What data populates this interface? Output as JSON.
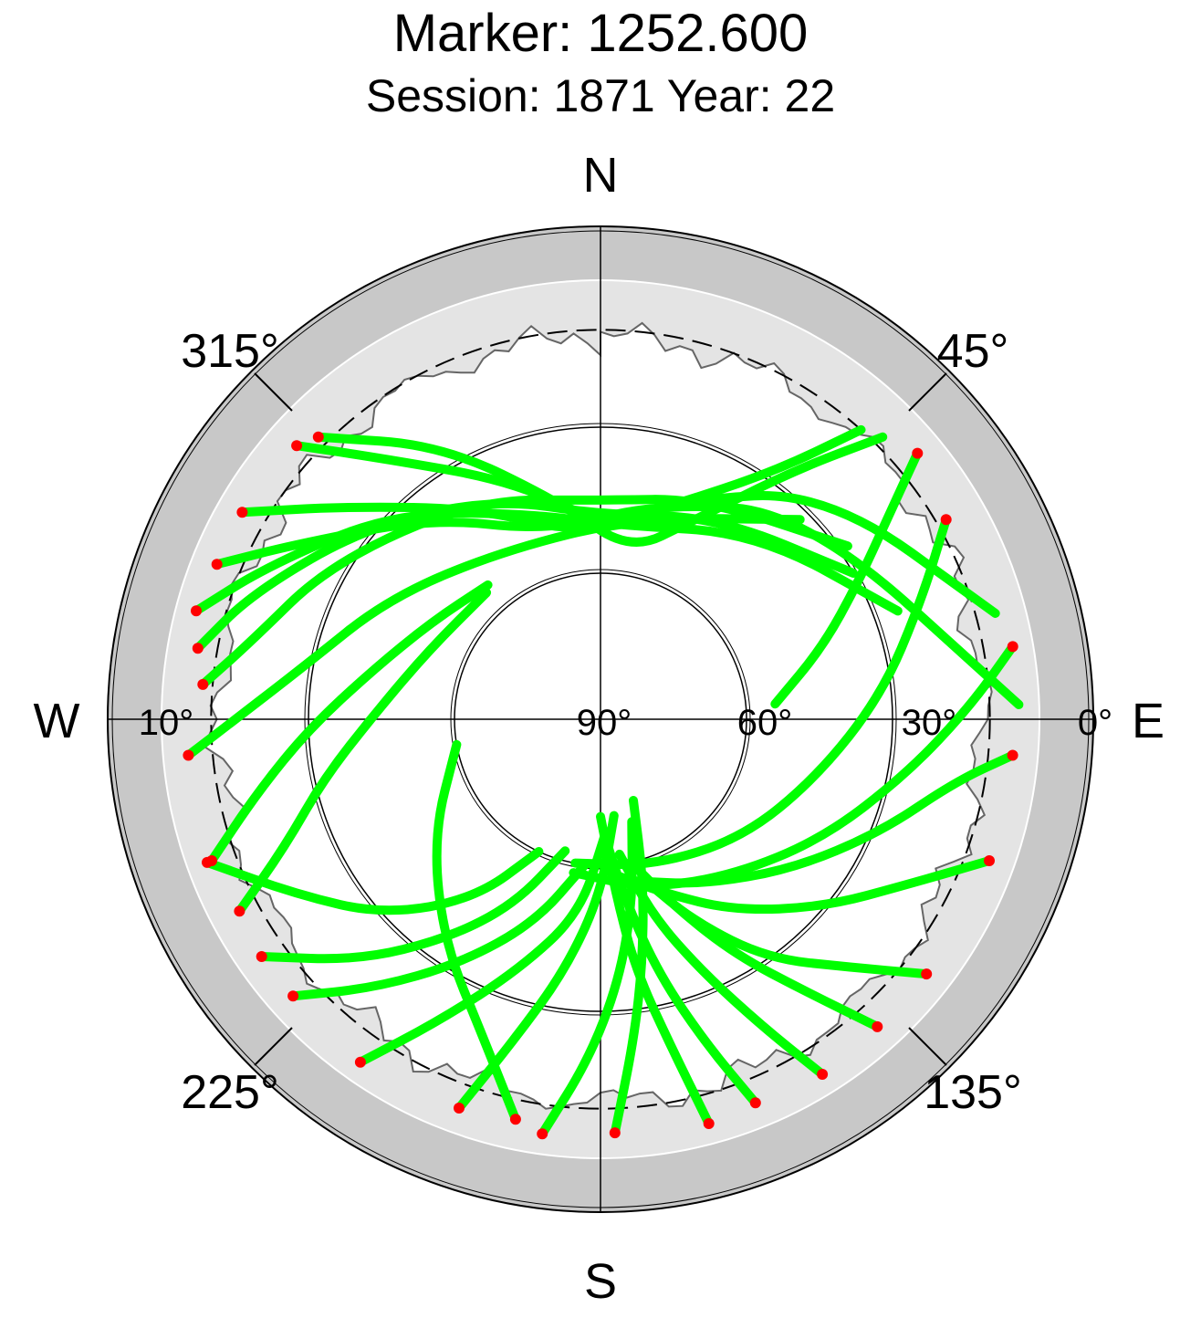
{
  "chart_data": {
    "type": "scatter",
    "projection": "polar-skyplot",
    "title": "Marker: 1252.600",
    "subtitle": "Session: 1871 Year: 22",
    "compass": {
      "north": "N",
      "south": "S",
      "west": "W",
      "east": "E"
    },
    "azimuth_labels": [
      "315°",
      "45°",
      "225°",
      "135°"
    ],
    "elevation_labels": [
      "10°",
      "90°",
      "60°",
      "30°",
      "0°"
    ],
    "elevation_rings": [
      0,
      10,
      30,
      60
    ],
    "colors": {
      "track": "#00ff00",
      "track_endpoint": "#ff0000",
      "outer_band": "#c8c8c8",
      "elevation_mask": "#e4e4e4",
      "grid": "#000000"
    },
    "mask_elevation_deg": 10,
    "tracks": [
      {
        "az": [
          315,
          330,
          350,
          10,
          25,
          38,
          45
        ],
        "el": [
          8,
          25,
          45,
          55,
          45,
          25,
          8
        ]
      },
      {
        "az": [
          312,
          320,
          340,
          0,
          18,
          35,
          42
        ],
        "el": [
          6,
          20,
          38,
          50,
          44,
          28,
          10
        ]
      },
      {
        "az": [
          300,
          310,
          330,
          355,
          20,
          45,
          75
        ],
        "el": [
          5,
          22,
          40,
          52,
          42,
          24,
          6
        ]
      },
      {
        "az": [
          292,
          300,
          320,
          345,
          15,
          45,
          88
        ],
        "el": [
          5,
          18,
          36,
          50,
          44,
          30,
          4
        ]
      },
      {
        "az": [
          285,
          295,
          315,
          340,
          5,
          40,
          70
        ],
        "el": [
          4,
          15,
          30,
          45,
          50,
          40,
          25
        ]
      },
      {
        "az": [
          280,
          290,
          310,
          335,
          0,
          30,
          60
        ],
        "el": [
          6,
          14,
          28,
          40,
          48,
          42,
          30
        ]
      },
      {
        "az": [
          275,
          282,
          300,
          330,
          0,
          25,
          55
        ],
        "el": [
          8,
          16,
          26,
          38,
          45,
          40,
          28
        ]
      },
      {
        "az": [
          265,
          270,
          280,
          300,
          330,
          10,
          45
        ],
        "el": [
          5,
          15,
          28,
          40,
          50,
          48,
          32
        ]
      },
      {
        "az": [
          250,
          240,
          228,
          215,
          205
        ],
        "el": [
          4,
          18,
          30,
          45,
          60
        ]
      },
      {
        "az": [
          235,
          225,
          215,
          205,
          195
        ],
        "el": [
          5,
          20,
          35,
          48,
          62
        ]
      },
      {
        "az": [
          228,
          220,
          210,
          198,
          186
        ],
        "el": [
          5,
          18,
          32,
          46,
          60
        ]
      },
      {
        "az": [
          215,
          208,
          198,
          186,
          178
        ],
        "el": [
          4,
          20,
          36,
          50,
          66
        ]
      },
      {
        "az": [
          200,
          195,
          188,
          180,
          172
        ],
        "el": [
          5,
          22,
          38,
          54,
          70
        ]
      },
      {
        "az": [
          188,
          182,
          176,
          170,
          163
        ],
        "el": [
          4,
          20,
          36,
          52,
          68
        ]
      },
      {
        "az": [
          178,
          174,
          170,
          165,
          158
        ],
        "el": [
          5,
          24,
          40,
          56,
          72
        ]
      },
      {
        "az": [
          165,
          168,
          172,
          175,
          180
        ],
        "el": [
          4,
          22,
          38,
          54,
          70
        ]
      },
      {
        "az": [
          158,
          162,
          167,
          172,
          178
        ],
        "el": [
          5,
          20,
          36,
          52,
          66
        ]
      },
      {
        "az": [
          148,
          152,
          158,
          165,
          172
        ],
        "el": [
          4,
          18,
          34,
          48,
          62
        ]
      },
      {
        "az": [
          138,
          143,
          150,
          158,
          168
        ],
        "el": [
          5,
          20,
          34,
          48,
          60
        ]
      },
      {
        "az": [
          128,
          135,
          145,
          155,
          165
        ],
        "el": [
          5,
          18,
          30,
          44,
          56
        ]
      },
      {
        "az": [
          110,
          118,
          130,
          145,
          160,
          175
        ],
        "el": [
          5,
          18,
          30,
          42,
          52,
          58
        ]
      },
      {
        "az": [
          95,
          100,
          112,
          128,
          148,
          168
        ],
        "el": [
          5,
          16,
          28,
          40,
          50,
          56
        ]
      },
      {
        "az": [
          80,
          88,
          100,
          118,
          140,
          165,
          190
        ],
        "el": [
          4,
          14,
          26,
          38,
          48,
          54,
          58
        ]
      },
      {
        "az": [
          60,
          70,
          85,
          105,
          130,
          160,
          190
        ],
        "el": [
          8,
          20,
          32,
          44,
          52,
          58,
          60
        ]
      },
      {
        "az": [
          50,
          55,
          62,
          72,
          85
        ],
        "el": [
          5,
          18,
          30,
          42,
          54
        ]
      },
      {
        "az": [
          250,
          258,
          268,
          282,
          300,
          320
        ],
        "el": [
          5,
          18,
          30,
          42,
          50,
          54
        ]
      },
      {
        "az": [
          242,
          248,
          258,
          272,
          292,
          318
        ],
        "el": [
          6,
          20,
          32,
          44,
          52,
          55
        ]
      },
      {
        "az": [
          192,
          200,
          215,
          235,
          260
        ],
        "el": [
          6,
          20,
          34,
          48,
          60
        ]
      }
    ]
  }
}
